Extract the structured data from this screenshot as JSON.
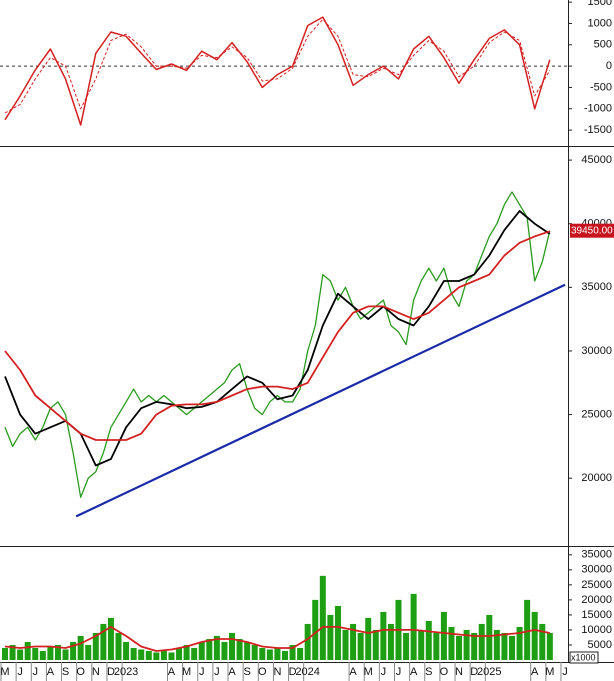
{
  "chart_data": [
    {
      "type": "line",
      "xlim": [
        -0.33,
        37.2
      ],
      "ylim": [
        -1850,
        1550
      ],
      "yticks": [
        1500,
        1000,
        500,
        0,
        -500,
        -1000,
        -1500
      ],
      "zero_line": true,
      "series": [
        {
          "type": "line",
          "color": "#d42020",
          "style": "solid",
          "x": [
            0,
            1,
            2,
            3,
            4,
            5,
            6,
            7,
            8,
            9,
            10,
            11,
            12,
            13,
            14,
            15,
            16,
            17,
            18,
            19,
            20,
            21,
            22,
            23,
            24,
            25,
            26,
            27,
            28,
            29,
            30,
            31,
            32,
            33,
            34,
            35,
            36
          ],
          "values": [
            -1260,
            -700,
            -90,
            400,
            -300,
            -1380,
            300,
            800,
            700,
            300,
            -80,
            50,
            -100,
            350,
            150,
            550,
            100,
            -500,
            -200,
            0,
            950,
            1150,
            500,
            -450,
            -200,
            0,
            -300,
            400,
            700,
            200,
            -400,
            150,
            650,
            850,
            500,
            -1000,
            150
          ]
        },
        {
          "type": "line",
          "color": "#d42020",
          "style": "dashed",
          "x": [
            0,
            1,
            2,
            3,
            4,
            5,
            6,
            7,
            8,
            9,
            10,
            11,
            12,
            13,
            14,
            15,
            16,
            17,
            18,
            19,
            20,
            21,
            22,
            23,
            24,
            25,
            26,
            27,
            28,
            29,
            30,
            31,
            32,
            33,
            34,
            35,
            36
          ],
          "values": [
            -1100,
            -900,
            -300,
            200,
            0,
            -1000,
            -300,
            600,
            750,
            450,
            0,
            0,
            -50,
            250,
            200,
            450,
            200,
            -350,
            -300,
            -50,
            700,
            1100,
            700,
            -200,
            -250,
            -50,
            -200,
            250,
            600,
            350,
            -250,
            0,
            550,
            800,
            600,
            -700,
            -100
          ]
        }
      ]
    },
    {
      "type": "line",
      "xlim": [
        -0.33,
        37.2
      ],
      "ylim": [
        14750,
        45950
      ],
      "yticks": [
        45000,
        40000,
        35000,
        30000,
        25000,
        20000
      ],
      "annotations": [
        {
          "value": 39450,
          "label": "39450.00"
        }
      ],
      "series": [
        {
          "type": "line",
          "color": "#2a9a1e",
          "width": 1.3,
          "x": [
            0,
            0.5,
            1,
            1.5,
            2,
            2.5,
            3,
            3.5,
            4,
            4.5,
            5,
            5.5,
            6,
            6.5,
            7,
            7.5,
            8,
            8.5,
            9,
            9.5,
            10,
            10.5,
            11,
            11.5,
            12,
            12.5,
            13,
            13.5,
            14,
            14.5,
            15,
            15.5,
            16,
            16.5,
            17,
            17.5,
            18,
            18.5,
            19,
            19.5,
            20,
            20.5,
            21,
            21.5,
            22,
            22.5,
            23,
            23.5,
            24,
            24.5,
            25,
            25.5,
            26,
            26.5,
            27,
            27.5,
            28,
            28.5,
            29,
            29.5,
            30,
            30.5,
            31,
            31.5,
            32,
            32.5,
            33,
            33.5,
            34,
            34.5,
            35,
            35.5,
            36
          ],
          "values": [
            24000,
            22500,
            23500,
            24000,
            23000,
            24000,
            25500,
            26000,
            25000,
            22000,
            18500,
            20000,
            20500,
            22000,
            24000,
            25000,
            26000,
            27000,
            26000,
            26500,
            26000,
            26500,
            26000,
            25500,
            25000,
            25500,
            26000,
            26500,
            27000,
            27500,
            28500,
            29000,
            27000,
            25500,
            25000,
            26000,
            26500,
            26000,
            26000,
            27000,
            30000,
            32000,
            36000,
            35500,
            34000,
            35000,
            33500,
            32500,
            33000,
            33500,
            34000,
            32000,
            31500,
            30500,
            34000,
            35500,
            36500,
            35500,
            36500,
            34500,
            33500,
            35500,
            36000,
            37500,
            39000,
            40000,
            41500,
            42500,
            41500,
            40500,
            35500,
            37000,
            39450
          ]
        },
        {
          "type": "line",
          "color": "#000000",
          "width": 1.8,
          "x": [
            0,
            1,
            2,
            3,
            4,
            5,
            6,
            7,
            8,
            9,
            10,
            11,
            12,
            13,
            14,
            15,
            16,
            17,
            18,
            19,
            20,
            21,
            22,
            23,
            24,
            25,
            26,
            27,
            28,
            29,
            30,
            31,
            32,
            33,
            34,
            35,
            36
          ],
          "values": [
            28000,
            25000,
            23500,
            24000,
            24500,
            23500,
            21000,
            21500,
            24000,
            25500,
            26000,
            25800,
            25500,
            25600,
            26000,
            27000,
            28000,
            27500,
            26200,
            26500,
            28500,
            32000,
            34500,
            33500,
            32500,
            33500,
            32500,
            32000,
            33500,
            35500,
            35500,
            36000,
            37500,
            39500,
            41000,
            40000,
            39200
          ]
        },
        {
          "type": "line",
          "color": "#d42020",
          "width": 1.8,
          "x": [
            0,
            1,
            2,
            3,
            4,
            5,
            6,
            7,
            8,
            9,
            10,
            11,
            12,
            13,
            14,
            15,
            16,
            17,
            18,
            19,
            20,
            21,
            22,
            23,
            24,
            25,
            26,
            27,
            28,
            29,
            30,
            31,
            32,
            33,
            34,
            35,
            36
          ],
          "values": [
            30000,
            28500,
            26500,
            25500,
            24500,
            23500,
            23000,
            23000,
            23000,
            23500,
            25000,
            25700,
            25800,
            25800,
            26000,
            26500,
            27000,
            27200,
            27200,
            27000,
            27500,
            29500,
            31500,
            33000,
            33500,
            33500,
            33000,
            32500,
            33000,
            34000,
            35000,
            35500,
            36000,
            37500,
            38500,
            39000,
            39400
          ]
        },
        {
          "type": "line",
          "color": "#1a2aa8",
          "width": 2.2,
          "x": [
            4.7,
            37
          ],
          "values": [
            17000,
            35200
          ]
        }
      ]
    },
    {
      "type": "bar",
      "xlim": [
        -0.33,
        37.2
      ],
      "ylim": [
        0,
        37600
      ],
      "yticks": [
        35000,
        30000,
        25000,
        20000,
        15000,
        10000,
        5000
      ],
      "unit_label": "x1000",
      "xticks": [
        {
          "value": 0,
          "label": "M"
        },
        {
          "value": 1,
          "label": "J"
        },
        {
          "value": 2,
          "label": "J"
        },
        {
          "value": 3,
          "label": "A"
        },
        {
          "value": 4,
          "label": "S"
        },
        {
          "value": 5,
          "label": "O"
        },
        {
          "value": 6,
          "label": "N"
        },
        {
          "value": 7,
          "label": "D"
        },
        {
          "value": 8,
          "label": "2023"
        },
        {
          "value": 11,
          "label": "A"
        },
        {
          "value": 12,
          "label": "M"
        },
        {
          "value": 13,
          "label": "J"
        },
        {
          "value": 14,
          "label": "J"
        },
        {
          "value": 15,
          "label": "A"
        },
        {
          "value": 16,
          "label": "S"
        },
        {
          "value": 17,
          "label": "O"
        },
        {
          "value": 18,
          "label": "N"
        },
        {
          "value": 19,
          "label": "D"
        },
        {
          "value": 20,
          "label": "2024"
        },
        {
          "value": 23,
          "label": "A"
        },
        {
          "value": 24,
          "label": "M"
        },
        {
          "value": 25,
          "label": "J"
        },
        {
          "value": 26,
          "label": "J"
        },
        {
          "value": 27,
          "label": "A"
        },
        {
          "value": 28,
          "label": "S"
        },
        {
          "value": 29,
          "label": "O"
        },
        {
          "value": 30,
          "label": "N"
        },
        {
          "value": 31,
          "label": "D"
        },
        {
          "value": 32,
          "label": "2025"
        },
        {
          "value": 35,
          "label": "A"
        },
        {
          "value": 36,
          "label": "M"
        },
        {
          "value": 37,
          "label": "J"
        }
      ],
      "series": [
        {
          "type": "bar",
          "color": "#1e9e12",
          "x": [
            0,
            0.5,
            1,
            1.5,
            2,
            2.5,
            3,
            3.5,
            4,
            4.5,
            5,
            5.5,
            6,
            6.5,
            7,
            7.5,
            8,
            8.5,
            9,
            9.5,
            10,
            10.5,
            11,
            11.5,
            12,
            12.5,
            13,
            13.5,
            14,
            14.5,
            15,
            15.5,
            16,
            16.5,
            17,
            17.5,
            18,
            18.5,
            19,
            19.5,
            20,
            20.5,
            21,
            21.5,
            22,
            22.5,
            23,
            23.5,
            24,
            24.5,
            25,
            25.5,
            26,
            26.5,
            27,
            27.5,
            28,
            28.5,
            29,
            29.5,
            30,
            30.5,
            31,
            31.5,
            32,
            32.5,
            33,
            33.5,
            34,
            34.5,
            35,
            35.5,
            36
          ],
          "values": [
            4000,
            5000,
            3500,
            6000,
            4000,
            3000,
            4500,
            5000,
            3500,
            6000,
            8000,
            5000,
            9000,
            12000,
            14000,
            9000,
            6000,
            4000,
            3500,
            3000,
            2500,
            3000,
            2500,
            4000,
            5000,
            4000,
            6000,
            7000,
            8000,
            6000,
            9000,
            7000,
            6000,
            5000,
            4000,
            3500,
            4000,
            3000,
            5000,
            4000,
            12000,
            20000,
            28000,
            15000,
            18000,
            10000,
            12000,
            9000,
            14000,
            10000,
            16000,
            12000,
            20000,
            9000,
            22000,
            10000,
            13000,
            9000,
            16000,
            11000,
            8000,
            10000,
            9000,
            12000,
            15000,
            10000,
            9000,
            8000,
            11000,
            20000,
            16000,
            12000,
            9000
          ]
        },
        {
          "type": "line",
          "color": "#d42020",
          "width": 1.8,
          "x": [
            0,
            1,
            2,
            3,
            4,
            5,
            6,
            7,
            8,
            9,
            10,
            11,
            12,
            13,
            14,
            15,
            16,
            17,
            18,
            19,
            20,
            21,
            22,
            23,
            24,
            25,
            26,
            27,
            28,
            29,
            30,
            31,
            32,
            33,
            34,
            35,
            36
          ],
          "values": [
            4500,
            4000,
            4500,
            4500,
            4000,
            5500,
            8000,
            11000,
            8000,
            4500,
            3000,
            3500,
            4500,
            6000,
            7000,
            7000,
            6000,
            4500,
            4000,
            4000,
            7000,
            11000,
            11000,
            10000,
            9000,
            10000,
            10000,
            10000,
            9500,
            9000,
            8500,
            8000,
            8000,
            8500,
            9000,
            10000,
            9000
          ]
        }
      ]
    }
  ]
}
